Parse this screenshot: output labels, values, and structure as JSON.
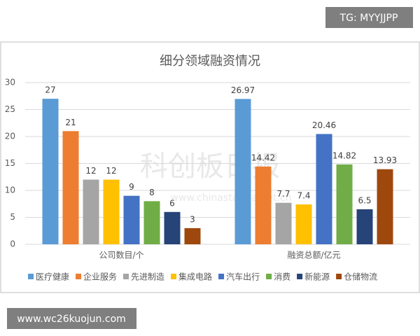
{
  "chart_data": {
    "type": "bar",
    "title": "细分领域融资情况",
    "categories": [
      "公司数目/个",
      "融资总额/亿元"
    ],
    "series": [
      {
        "name": "医疗健康",
        "color": "#5b9bd5",
        "values": [
          27,
          26.97
        ]
      },
      {
        "name": "企业服务",
        "color": "#ed7d31",
        "values": [
          21,
          14.42
        ]
      },
      {
        "name": "先进制造",
        "color": "#a5a5a5",
        "values": [
          12,
          7.7
        ]
      },
      {
        "name": "集成电路",
        "color": "#ffc000",
        "values": [
          12,
          7.4
        ]
      },
      {
        "name": "汽车出行",
        "color": "#4472c4",
        "values": [
          9,
          20.46
        ]
      },
      {
        "name": "消费",
        "color": "#70ad47",
        "values": [
          8,
          14.82
        ]
      },
      {
        "name": "新能源",
        "color": "#264478",
        "values": [
          6,
          6.5
        ]
      },
      {
        "name": "仓储物流",
        "color": "#9e480e",
        "values": [
          3,
          13.93
        ]
      }
    ],
    "ylim": [
      0,
      30
    ],
    "yticks": [
      0,
      5,
      10,
      15,
      20,
      25,
      30
    ],
    "grid": true,
    "legend": "bottom",
    "watermark": "科创板日报",
    "watermark_url": "www.chinastarmarket.cn"
  },
  "overlays": {
    "top_right": "TG: MYYJJPP",
    "bottom_left": "www.wc26kuojun.com"
  }
}
